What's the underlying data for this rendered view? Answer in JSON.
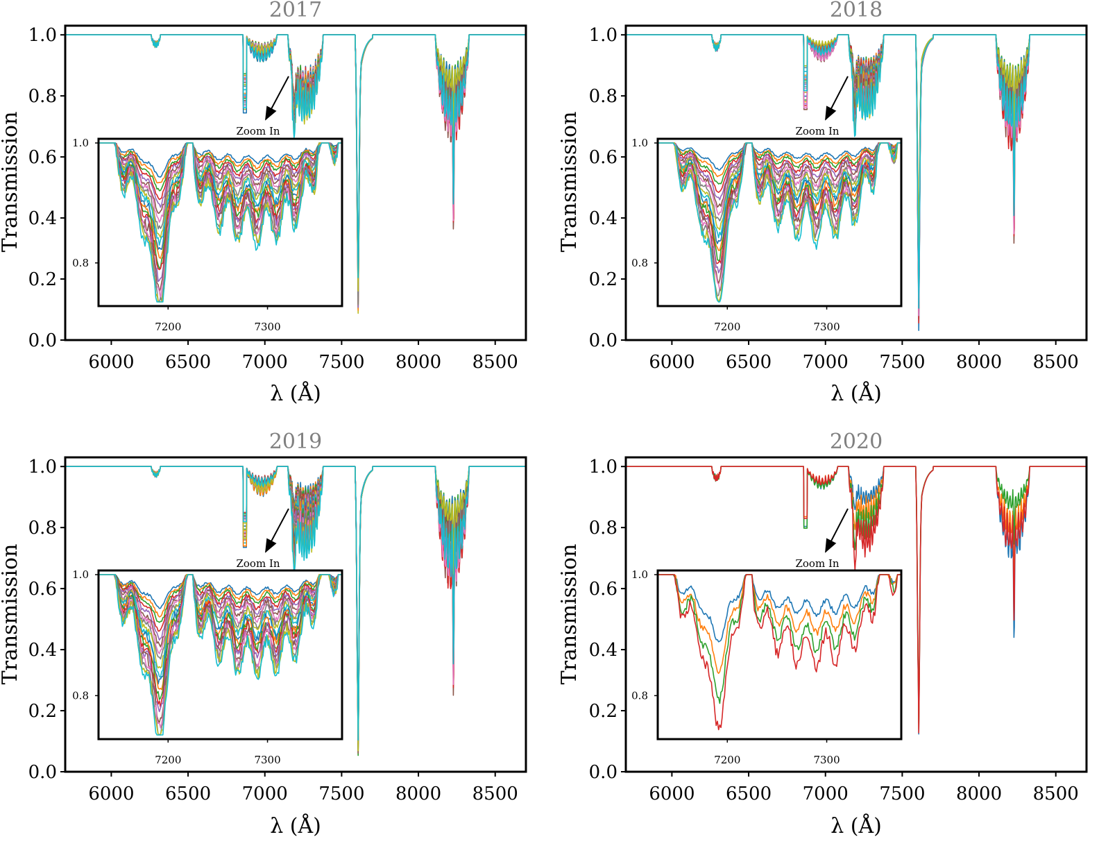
{
  "colors": [
    "#1f77b4",
    "#ff7f0e",
    "#2ca02c",
    "#d62728",
    "#9467bd",
    "#8c564b",
    "#e377c2",
    "#7f7f7f",
    "#bcbd22",
    "#17becf"
  ],
  "chart_data": [
    {
      "type": "line",
      "title": "2017",
      "xlabel": "λ (Å)",
      "ylabel": "Transmission",
      "xlim": [
        5700,
        8700
      ],
      "ylim": [
        0.0,
        1.03
      ],
      "xticks": [
        "6000",
        "6500",
        "7000",
        "7500",
        "8000",
        "8500"
      ],
      "yticks": [
        "0.0",
        "0.2",
        "0.4",
        "0.6",
        "0.8",
        "1.0"
      ],
      "grid": false,
      "n_series": 20,
      "band_depth_range": {
        "band_6280": [
          0.03,
          0.06
        ],
        "band_6870": [
          0.12,
          0.26
        ],
        "band_7200": [
          0.18,
          0.28
        ],
        "band_7600": [
          0.65,
          0.75
        ],
        "band_8200": [
          0.15,
          0.35
        ]
      },
      "annotation": "Zoom In",
      "inset": {
        "xlim": [
          7130,
          7375
        ],
        "ylim": [
          0.735,
          1.0
        ],
        "xticks": [
          "7200",
          "7300"
        ],
        "yticks": [
          "0.8",
          "1.0"
        ],
        "min_transmission_range": [
          0.74,
          0.95
        ]
      }
    },
    {
      "type": "line",
      "title": "2018",
      "xlabel": "λ (Å)",
      "ylabel": "Transmission",
      "xlim": [
        5700,
        8700
      ],
      "ylim": [
        0.0,
        1.03
      ],
      "xticks": [
        "6000",
        "6500",
        "7000",
        "7500",
        "8000",
        "8500"
      ],
      "yticks": [
        "0.0",
        "0.2",
        "0.4",
        "0.6",
        "0.8",
        "1.0"
      ],
      "grid": false,
      "n_series": 20,
      "band_depth_range": {
        "band_6280": [
          0.03,
          0.06
        ],
        "band_6870": [
          0.1,
          0.25
        ],
        "band_7200": [
          0.12,
          0.28
        ],
        "band_7600": [
          0.55,
          0.8
        ],
        "band_8200": [
          0.15,
          0.37
        ]
      },
      "annotation": "Zoom In",
      "inset": {
        "xlim": [
          7130,
          7375
        ],
        "ylim": [
          0.735,
          1.0
        ],
        "xticks": [
          "7200",
          "7300"
        ],
        "yticks": [
          "0.8",
          "1.0"
        ],
        "min_transmission_range": [
          0.75,
          0.96
        ]
      }
    },
    {
      "type": "line",
      "title": "2019",
      "xlabel": "λ (Å)",
      "ylabel": "Transmission",
      "xlim": [
        5700,
        8700
      ],
      "ylim": [
        0.0,
        1.03
      ],
      "xticks": [
        "6000",
        "6500",
        "7000",
        "7500",
        "8000",
        "8500"
      ],
      "yticks": [
        "0.0",
        "0.2",
        "0.4",
        "0.6",
        "0.8",
        "1.0"
      ],
      "grid": false,
      "n_series": 20,
      "band_depth_range": {
        "band_6280": [
          0.03,
          0.06
        ],
        "band_6870": [
          0.15,
          0.27
        ],
        "band_7200": [
          0.1,
          0.3
        ],
        "band_7600": [
          0.7,
          0.78
        ],
        "band_8200": [
          0.15,
          0.4
        ]
      },
      "annotation": "Zoom In",
      "inset": {
        "xlim": [
          7130,
          7375
        ],
        "ylim": [
          0.735,
          1.0
        ],
        "xticks": [
          "7200",
          "7300"
        ],
        "yticks": [
          "0.8",
          "1.0"
        ],
        "min_transmission_range": [
          0.74,
          0.95
        ]
      }
    },
    {
      "type": "line",
      "title": "2020",
      "xlabel": "λ (Å)",
      "ylabel": "Transmission",
      "xlim": [
        5700,
        8700
      ],
      "ylim": [
        0.0,
        1.03
      ],
      "xticks": [
        "6000",
        "6500",
        "7000",
        "7500",
        "8000",
        "8500"
      ],
      "yticks": [
        "0.0",
        "0.2",
        "0.4",
        "0.6",
        "0.8",
        "1.0"
      ],
      "grid": false,
      "n_series": 4,
      "band_depth_range": {
        "band_6280": [
          0.04,
          0.06
        ],
        "band_6870": [
          0.15,
          0.22
        ],
        "band_7200": [
          0.12,
          0.28
        ],
        "band_7600": [
          0.68,
          0.72
        ],
        "band_8200": [
          0.12,
          0.34
        ]
      },
      "annotation": "Zoom In",
      "inset": {
        "xlim": [
          7130,
          7375
        ],
        "ylim": [
          0.735,
          1.0
        ],
        "xticks": [
          "7200",
          "7300"
        ],
        "yticks": [
          "0.8",
          "1.0"
        ],
        "min_transmission_range": [
          0.77,
          0.9
        ]
      }
    }
  ]
}
